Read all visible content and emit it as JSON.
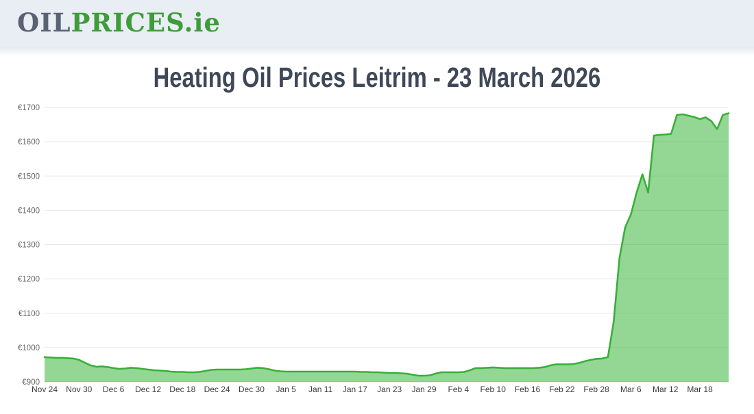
{
  "header": {
    "logo": {
      "oil": "OIL",
      "prices": "PRICES",
      "ie": ".ie"
    }
  },
  "page_title": "Heating Oil Prices Leitrim - 23 March 2026",
  "theme": {
    "header_bg": "#e9edf4",
    "logo_gray": "#596272",
    "logo_green": "#3e9c3a",
    "title_color": "#3e4858",
    "line_green": "#38b038",
    "fill_green": "#3cb43c",
    "fill_opacity": 0.55,
    "grid_color": "#e7e7e7",
    "axis_line_color": "#cfcfcf",
    "y_label_color": "#666666",
    "x_label_color": "#3c3c3c"
  },
  "chart_data": {
    "type": "area",
    "title": "Heating Oil Prices Leitrim - 23 March 2026",
    "xlabel": "",
    "ylabel": "",
    "ylim": [
      900,
      1700
    ],
    "grid": true,
    "legend": "none",
    "y_ticks": [
      900,
      1000,
      1100,
      1200,
      1300,
      1400,
      1500,
      1600,
      1700
    ],
    "y_tick_labels": [
      "€900",
      "€1000",
      "€1100",
      "€1200",
      "€1300",
      "€1400",
      "€1500",
      "€1600",
      "€1700"
    ],
    "x_tick_every": 6,
    "x_tick_labels": [
      "Nov 24",
      "Nov 30",
      "Dec 6",
      "Dec 12",
      "Dec 18",
      "Dec 24",
      "Dec 30",
      "Jan 5",
      "Jan 11",
      "Jan 17",
      "Jan 23",
      "Jan 29",
      "Feb 4",
      "Feb 10",
      "Feb 16",
      "Feb 22",
      "Feb 28",
      "Mar 6",
      "Mar 12",
      "Mar 18"
    ],
    "x_cadence": "daily",
    "values": [
      972,
      971,
      970,
      970,
      969,
      968,
      964,
      956,
      948,
      944,
      945,
      943,
      940,
      938,
      939,
      941,
      940,
      938,
      936,
      934,
      933,
      932,
      930,
      929,
      929,
      928,
      928,
      929,
      932,
      935,
      936,
      936,
      936,
      936,
      936,
      937,
      939,
      941,
      940,
      937,
      933,
      931,
      930,
      930,
      930,
      930,
      930,
      930,
      930,
      930,
      930,
      930,
      930,
      930,
      930,
      929,
      929,
      928,
      928,
      927,
      926,
      926,
      925,
      924,
      921,
      918,
      918,
      919,
      924,
      928,
      928,
      928,
      928,
      929,
      934,
      940,
      940,
      941,
      942,
      941,
      940,
      940,
      940,
      940,
      940,
      940,
      941,
      943,
      948,
      951,
      951,
      951,
      952,
      955,
      960,
      964,
      967,
      968,
      972,
      1075,
      1260,
      1350,
      1388,
      1452,
      1505,
      1452,
      1618,
      1620,
      1621,
      1623,
      1678,
      1680,
      1676,
      1672,
      1666,
      1671,
      1660,
      1637,
      1678,
      1683
    ]
  }
}
